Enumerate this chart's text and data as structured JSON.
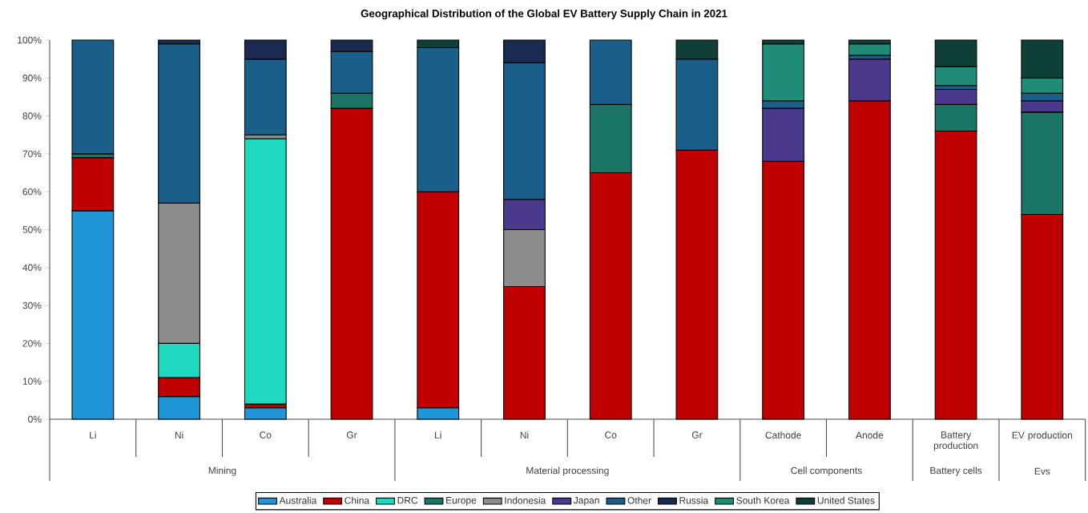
{
  "chart_data": {
    "type": "bar",
    "stacked": true,
    "title": "Geographical Distribution of the Global EV Battery Supply Chain in 2021",
    "categories": [
      "Li",
      "Ni",
      "Co",
      "Gr",
      "Li",
      "Ni",
      "Co",
      "Gr",
      "Cathode",
      "Anode",
      "Battery production",
      "EV production"
    ],
    "series": [
      {
        "name": "Australia",
        "color": "#2196d6",
        "values": [
          55,
          6,
          3,
          null,
          3,
          null,
          null,
          null,
          null,
          null,
          null,
          null
        ]
      },
      {
        "name": "China",
        "color": "#c00000",
        "values": [
          14,
          5,
          1,
          82,
          57,
          35,
          65,
          71,
          68,
          84,
          76,
          54
        ]
      },
      {
        "name": "DRC",
        "color": "#1fd8c0",
        "values": [
          null,
          9,
          70,
          null,
          null,
          null,
          null,
          null,
          null,
          null,
          null,
          null
        ]
      },
      {
        "name": "Europe",
        "color": "#1a7564",
        "values": [
          1,
          null,
          null,
          4,
          null,
          null,
          18,
          null,
          null,
          null,
          7,
          27
        ]
      },
      {
        "name": "Indonesia",
        "color": "#8c8c8c",
        "values": [
          null,
          37,
          1,
          null,
          null,
          15,
          null,
          null,
          null,
          null,
          null,
          null
        ]
      },
      {
        "name": "Japan",
        "color": "#4b3a8c",
        "values": [
          null,
          null,
          null,
          null,
          null,
          8,
          null,
          null,
          14,
          11,
          4,
          3
        ]
      },
      {
        "name": "Other",
        "color": "#1a5e8a",
        "values": [
          30,
          42,
          20,
          11,
          38,
          36,
          17,
          24,
          2,
          1,
          1,
          2
        ]
      },
      {
        "name": "Russia",
        "color": "#1a2a50",
        "values": [
          null,
          1,
          5,
          3,
          null,
          6,
          null,
          null,
          null,
          null,
          null,
          null
        ]
      },
      {
        "name": "South Korea",
        "color": "#1f8c78",
        "values": [
          null,
          null,
          null,
          null,
          null,
          null,
          null,
          null,
          15,
          3,
          5,
          4
        ]
      },
      {
        "name": "United States",
        "color": "#0e4038",
        "values": [
          null,
          null,
          null,
          null,
          2,
          null,
          null,
          5,
          1,
          1,
          7,
          10
        ]
      }
    ],
    "ylim": [
      0,
      100
    ],
    "yticks": [
      {
        "value": 0,
        "label": "0%"
      },
      {
        "value": 10,
        "label": "10%"
      },
      {
        "value": 20,
        "label": "20%"
      },
      {
        "value": 30,
        "label": "30%"
      },
      {
        "value": 40,
        "label": "40%"
      },
      {
        "value": 50,
        "label": "50%"
      },
      {
        "value": 60,
        "label": "60%"
      },
      {
        "value": 70,
        "label": "70%"
      },
      {
        "value": 80,
        "label": "80%"
      },
      {
        "value": 90,
        "label": "90%"
      },
      {
        "value": 100,
        "label": "100%"
      }
    ],
    "annotations": [
      "Mining",
      "Material processing",
      "Cell components",
      "Battery cells",
      "Evs"
    ],
    "legend": "bottom"
  }
}
